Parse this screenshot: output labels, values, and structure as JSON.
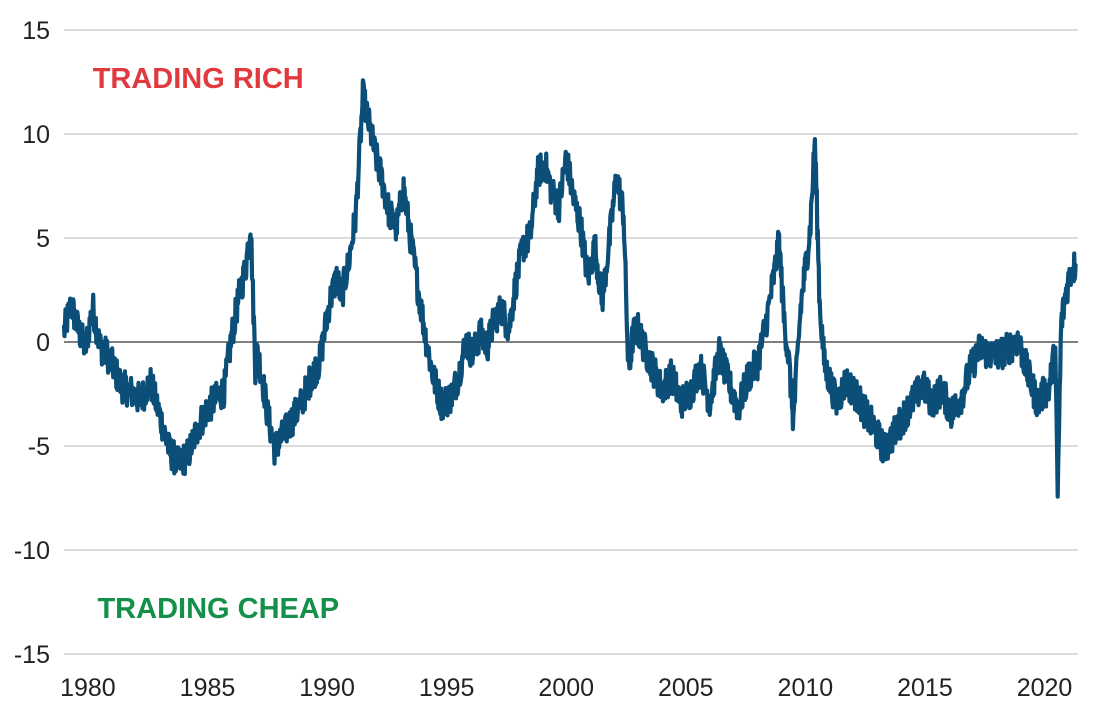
{
  "chart_data": {
    "type": "line",
    "title": "",
    "xlabel": "",
    "ylabel": "",
    "xlim": [
      1979.0,
      2021.4
    ],
    "ylim": [
      -15,
      15
    ],
    "y_ticks": [
      "15",
      "10",
      "5",
      "0",
      "-5",
      "-10",
      "-15"
    ],
    "x_ticks": [
      "1980",
      "1985",
      "1990",
      "1995",
      "2000",
      "2005",
      "2010",
      "2015",
      "2020"
    ],
    "grid": "horizontal",
    "zero_line": true,
    "annotations": [
      {
        "text": "TRADING RICH",
        "color": "#e03a3e",
        "x": 1980.2,
        "y": 12.7
      },
      {
        "text": "TRADING CHEAP",
        "color": "#14904a",
        "x": 1980.4,
        "y": -12.8
      }
    ],
    "series": [
      {
        "color": "#0b4f79",
        "x": [
          1979.0,
          1979.3,
          1979.6,
          1979.9,
          1980.2,
          1980.5,
          1980.8,
          1981.1,
          1981.4,
          1981.8,
          1982.2,
          1982.6,
          1983.0,
          1983.4,
          1983.8,
          1984.2,
          1984.6,
          1985.0,
          1985.3,
          1985.7,
          1986.0,
          1986.3,
          1986.6,
          1986.8,
          1987.0,
          1987.1,
          1987.3,
          1987.5,
          1987.8,
          1988.1,
          1988.5,
          1988.9,
          1989.3,
          1989.7,
          1990.1,
          1990.4,
          1990.6,
          1990.9,
          1991.2,
          1991.5,
          1991.8,
          1992.0,
          1992.3,
          1992.6,
          1992.9,
          1993.2,
          1993.5,
          1993.8,
          1994.1,
          1994.4,
          1994.8,
          1995.2,
          1995.5,
          1995.8,
          1996.1,
          1996.4,
          1996.7,
          1997.0,
          1997.3,
          1997.6,
          1997.9,
          1998.2,
          1998.5,
          1998.8,
          1999.1,
          1999.4,
          1999.7,
          2000.0,
          2000.3,
          2000.6,
          2000.9,
          2001.2,
          2001.5,
          2001.8,
          2002.1,
          2002.4,
          2002.6,
          2002.8,
          2003.0,
          2003.3,
          2003.6,
          2004.0,
          2004.4,
          2004.8,
          2005.2,
          2005.6,
          2006.0,
          2006.4,
          2006.8,
          2007.2,
          2007.6,
          2008.0,
          2008.4,
          2008.7,
          2008.9,
          2009.1,
          2009.3,
          2009.5,
          2009.8,
          2010.0,
          2010.2,
          2010.4,
          2010.6,
          2010.8,
          2011.0,
          2011.3,
          2011.7,
          2012.1,
          2012.5,
          2012.9,
          2013.3,
          2013.7,
          2014.1,
          2014.5,
          2014.9,
          2015.3,
          2015.7,
          2016.1,
          2016.5,
          2016.9,
          2017.3,
          2017.7,
          2018.1,
          2018.5,
          2018.9,
          2019.3,
          2019.7,
          2020.0,
          2020.2,
          2020.35,
          2020.45,
          2020.55,
          2020.7,
          2020.9,
          2021.1,
          2021.3
        ],
        "values": [
          0.5,
          1.8,
          0.6,
          -0.3,
          1.7,
          -0.2,
          -0.6,
          -1.3,
          -2.1,
          -2.4,
          -2.8,
          -1.9,
          -3.5,
          -5.2,
          -5.9,
          -5.4,
          -4.1,
          -3.2,
          -2.8,
          -2.3,
          0.2,
          2.1,
          3.6,
          5.8,
          -1.2,
          -0.5,
          -1.8,
          -3.4,
          -5.1,
          -4.6,
          -3.8,
          -3.0,
          -1.8,
          -0.9,
          1.9,
          3.1,
          2.2,
          3.8,
          6.1,
          11.8,
          10.2,
          9.1,
          7.8,
          6.2,
          5.5,
          7.4,
          4.9,
          2.6,
          0.4,
          -1.5,
          -3.0,
          -2.6,
          -1.6,
          0.0,
          -0.6,
          0.4,
          -0.2,
          1.1,
          1.6,
          0.6,
          2.9,
          4.6,
          5.1,
          8.1,
          8.6,
          7.2,
          6.6,
          8.9,
          6.9,
          5.6,
          3.1,
          4.6,
          2.0,
          4.8,
          8.0,
          6.2,
          -1.5,
          0.4,
          0.6,
          -0.4,
          -1.2,
          -2.3,
          -1.6,
          -2.9,
          -2.4,
          -1.2,
          -2.9,
          -0.5,
          -2.0,
          -3.2,
          -1.7,
          -1.0,
          1.2,
          3.3,
          4.8,
          1.2,
          -0.8,
          -3.8,
          1.6,
          3.6,
          5.4,
          9.7,
          1.8,
          -1.1,
          -1.8,
          -2.9,
          -1.9,
          -2.5,
          -3.4,
          -4.2,
          -5.2,
          -4.4,
          -3.6,
          -2.8,
          -2.1,
          -2.9,
          -2.3,
          -3.4,
          -2.7,
          -1.3,
          -0.3,
          -0.6,
          -0.6,
          -0.3,
          0.1,
          -1.5,
          -2.9,
          -2.4,
          -2.2,
          -1.0,
          -0.6,
          -7.3,
          0.9,
          2.4,
          3.4,
          3.7
        ]
      }
    ]
  }
}
